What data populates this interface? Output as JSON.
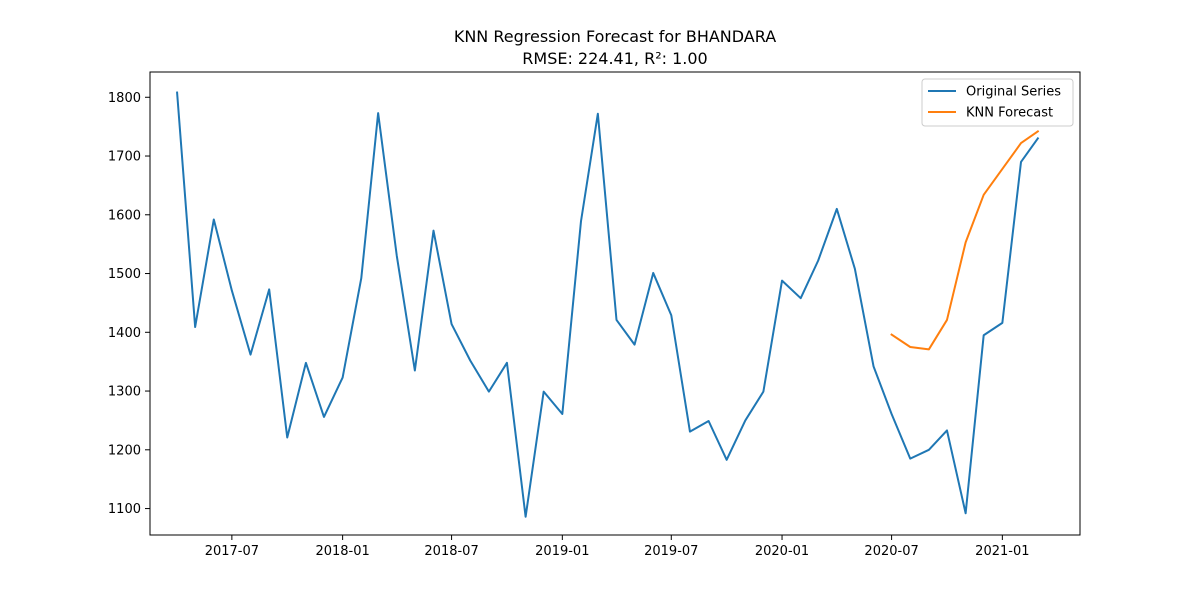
{
  "chart_data": {
    "type": "line",
    "title": "KNN Regression Forecast for BHANDARA",
    "subtitle": "RMSE: 224.41, R²: 1.00",
    "xlabel": "",
    "ylabel": "",
    "x_range": [
      "2017-02-15",
      "2021-05-10"
    ],
    "ylim": [
      1055,
      1843
    ],
    "x_ticks": [
      "2017-07",
      "2018-01",
      "2018-07",
      "2019-01",
      "2019-07",
      "2020-01",
      "2020-07",
      "2021-01"
    ],
    "y_ticks": [
      1100,
      1200,
      1300,
      1400,
      1500,
      1600,
      1700,
      1800
    ],
    "grid": false,
    "legend": "top-right",
    "series": [
      {
        "name": "Original Series",
        "color": "#1f77b4",
        "x": [
          "2017-04-01",
          "2017-05-01",
          "2017-06-01",
          "2017-07-01",
          "2017-08-01",
          "2017-09-01",
          "2017-10-01",
          "2017-11-01",
          "2017-12-01",
          "2018-01-01",
          "2018-02-01",
          "2018-03-01",
          "2018-04-01",
          "2018-05-01",
          "2018-06-01",
          "2018-07-01",
          "2018-08-01",
          "2018-09-01",
          "2018-10-01",
          "2018-11-01",
          "2018-12-01",
          "2019-01-01",
          "2019-02-01",
          "2019-03-01",
          "2019-04-01",
          "2019-05-01",
          "2019-06-01",
          "2019-07-01",
          "2019-08-01",
          "2019-09-01",
          "2019-10-01",
          "2019-11-01",
          "2019-12-01",
          "2020-01-01",
          "2020-02-01",
          "2020-03-01",
          "2020-04-01",
          "2020-05-01",
          "2020-06-01",
          "2020-07-01",
          "2020-08-01",
          "2020-09-01",
          "2020-10-01",
          "2020-11-01",
          "2020-12-01",
          "2021-01-01",
          "2021-02-01",
          "2021-03-01"
        ],
        "values": [
          1808,
          1409,
          1592,
          1471,
          1362,
          1473,
          1221,
          1348,
          1256,
          1323,
          1492,
          1773,
          1530,
          1335,
          1573,
          1414,
          1352,
          1299,
          1348,
          1086,
          1299,
          1261,
          1589,
          1772,
          1421,
          1379,
          1501,
          1429,
          1231,
          1249,
          1183,
          1250,
          1299,
          1488,
          1458,
          1522,
          1610,
          1508,
          1342,
          1261,
          1185,
          1200,
          1233,
          1092,
          1395,
          1416,
          1690,
          1730
        ]
      },
      {
        "name": "KNN Forecast",
        "color": "#ff7f0e",
        "x": [
          "2020-07-01",
          "2020-08-01",
          "2020-09-01",
          "2020-10-01",
          "2020-11-01",
          "2020-12-01",
          "2021-01-01",
          "2021-02-01",
          "2021-03-01"
        ],
        "values": [
          1396,
          1375,
          1371,
          1421,
          1553,
          1634,
          1678,
          1722,
          1742
        ]
      }
    ]
  }
}
